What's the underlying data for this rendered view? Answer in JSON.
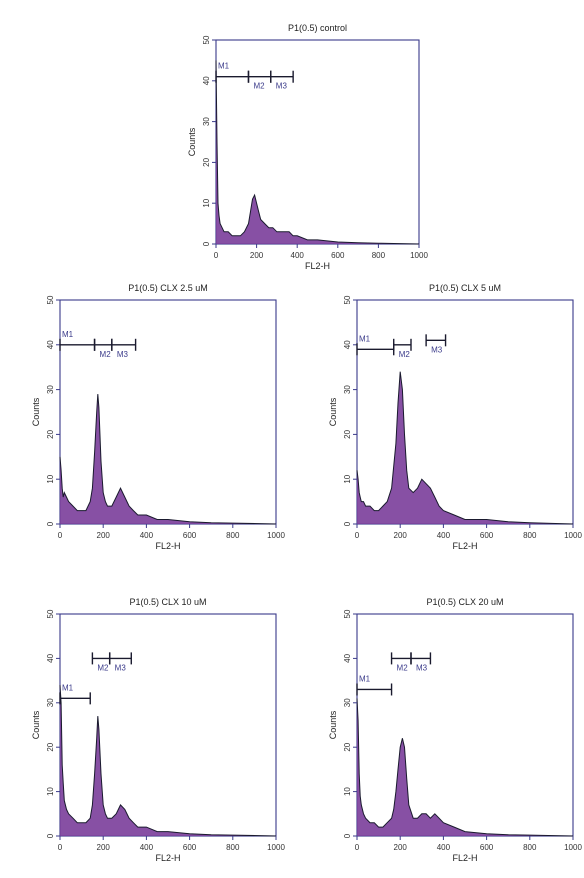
{
  "chart_data": [
    {
      "type": "area",
      "title": "P1(0.5) control",
      "xlabel": "FL2-H",
      "ylabel": "Counts",
      "xlim": [
        0,
        1000
      ],
      "ylim": [
        0,
        50
      ],
      "xticks": [
        "0",
        "200",
        "400",
        "600",
        "800",
        "1000"
      ],
      "yticks": [
        "0",
        "10",
        "20",
        "30",
        "40",
        "50"
      ],
      "fill_color": "#7a3d9a",
      "outline_color": "#1a1a2e",
      "markers": [
        {
          "name": "M1",
          "range": [
            0,
            160
          ],
          "y": 41
        },
        {
          "name": "M2",
          "range": [
            160,
            270
          ],
          "y": 41
        },
        {
          "name": "M3",
          "range": [
            270,
            380
          ],
          "y": 41
        }
      ],
      "x": [
        0,
        5,
        10,
        15,
        20,
        30,
        40,
        60,
        80,
        100,
        120,
        140,
        160,
        170,
        180,
        190,
        200,
        210,
        220,
        240,
        260,
        280,
        300,
        320,
        340,
        360,
        380,
        400,
        450,
        500,
        600,
        700,
        800,
        1000
      ],
      "values": [
        45,
        25,
        10,
        7,
        5,
        4,
        3,
        3,
        2,
        2,
        2,
        3,
        5,
        8,
        11,
        12,
        10,
        8,
        6,
        5,
        4,
        4,
        3,
        3,
        3,
        3,
        2,
        2,
        1,
        1,
        0.5,
        0.3,
        0.2,
        0
      ]
    },
    {
      "type": "area",
      "title": "P1(0.5) CLX 2.5 uM",
      "xlabel": "FL2-H",
      "ylabel": "Counts",
      "xlim": [
        0,
        1000
      ],
      "ylim": [
        0,
        50
      ],
      "xticks": [
        "0",
        "200",
        "400",
        "600",
        "800",
        "1000"
      ],
      "yticks": [
        "0",
        "10",
        "20",
        "30",
        "40",
        "50"
      ],
      "fill_color": "#7a3d9a",
      "outline_color": "#1a1a2e",
      "markers": [
        {
          "name": "M1",
          "range": [
            0,
            160
          ],
          "y": 40
        },
        {
          "name": "M2",
          "range": [
            160,
            240
          ],
          "y": 40
        },
        {
          "name": "M3",
          "range": [
            240,
            350
          ],
          "y": 40
        }
      ],
      "x": [
        0,
        5,
        10,
        15,
        20,
        30,
        40,
        60,
        80,
        100,
        120,
        140,
        150,
        160,
        170,
        175,
        180,
        190,
        200,
        210,
        220,
        240,
        260,
        280,
        300,
        320,
        340,
        360,
        400,
        450,
        500,
        600,
        700,
        800,
        1000
      ],
      "values": [
        15,
        12,
        8,
        6,
        7,
        6,
        5,
        4,
        3,
        3,
        3,
        5,
        8,
        16,
        25,
        29,
        26,
        14,
        7,
        5,
        4,
        4,
        6,
        8,
        6,
        4,
        3,
        2,
        2,
        1,
        1,
        0.5,
        0.3,
        0.2,
        0
      ]
    },
    {
      "type": "area",
      "title": "P1(0.5) CLX 5 uM",
      "xlabel": "FL2-H",
      "ylabel": "Counts",
      "xlim": [
        0,
        1000
      ],
      "ylim": [
        0,
        50
      ],
      "xticks": [
        "0",
        "200",
        "400",
        "600",
        "800",
        "1000"
      ],
      "yticks": [
        "0",
        "10",
        "20",
        "30",
        "40",
        "50"
      ],
      "fill_color": "#7a3d9a",
      "outline_color": "#1a1a2e",
      "markers": [
        {
          "name": "M1",
          "range": [
            0,
            170
          ],
          "y": 39
        },
        {
          "name": "M2",
          "range": [
            170,
            250
          ],
          "y": 40
        },
        {
          "name": "M3",
          "range": [
            320,
            410
          ],
          "y": 41
        }
      ],
      "x": [
        0,
        5,
        10,
        15,
        20,
        30,
        40,
        60,
        80,
        100,
        120,
        140,
        160,
        180,
        190,
        200,
        210,
        220,
        230,
        240,
        260,
        280,
        300,
        320,
        340,
        360,
        380,
        400,
        450,
        500,
        600,
        700,
        800,
        1000
      ],
      "values": [
        12,
        10,
        7,
        6,
        5,
        5,
        4,
        4,
        3,
        3,
        4,
        5,
        8,
        18,
        27,
        34,
        30,
        20,
        12,
        8,
        7,
        8,
        10,
        9,
        8,
        6,
        4,
        3,
        2,
        1,
        1,
        0.5,
        0.3,
        0
      ]
    },
    {
      "type": "area",
      "title": "P1(0.5) CLX 10 uM",
      "xlabel": "FL2-H",
      "ylabel": "Counts",
      "xlim": [
        0,
        1000
      ],
      "ylim": [
        0,
        50
      ],
      "xticks": [
        "0",
        "200",
        "400",
        "600",
        "800",
        "1000"
      ],
      "yticks": [
        "0",
        "10",
        "20",
        "30",
        "40",
        "50"
      ],
      "fill_color": "#7a3d9a",
      "outline_color": "#1a1a2e",
      "markers": [
        {
          "name": "M1",
          "range": [
            0,
            140
          ],
          "y": 31
        },
        {
          "name": "M2",
          "range": [
            150,
            230
          ],
          "y": 40
        },
        {
          "name": "M3",
          "range": [
            230,
            330
          ],
          "y": 40
        }
      ],
      "x": [
        0,
        5,
        10,
        15,
        20,
        30,
        40,
        60,
        80,
        100,
        120,
        140,
        150,
        160,
        170,
        175,
        180,
        190,
        200,
        210,
        220,
        240,
        260,
        280,
        300,
        320,
        340,
        360,
        400,
        450,
        500,
        600,
        700,
        800,
        1000
      ],
      "values": [
        34,
        30,
        16,
        12,
        8,
        6,
        5,
        4,
        3,
        3,
        3,
        4,
        7,
        14,
        22,
        27,
        24,
        14,
        7,
        5,
        4,
        4,
        5,
        7,
        6,
        4,
        3,
        2,
        2,
        1,
        1,
        0.5,
        0.3,
        0.2,
        0
      ]
    },
    {
      "type": "area",
      "title": "P1(0.5) CLX 20 uM",
      "xlabel": "FL2-H",
      "ylabel": "Counts",
      "xlim": [
        0,
        1000
      ],
      "ylim": [
        0,
        50
      ],
      "xticks": [
        "0",
        "200",
        "400",
        "600",
        "800",
        "1000"
      ],
      "yticks": [
        "0",
        "10",
        "20",
        "30",
        "40",
        "50"
      ],
      "fill_color": "#7a3d9a",
      "outline_color": "#1a1a2e",
      "markers": [
        {
          "name": "M1",
          "range": [
            0,
            160
          ],
          "y": 33
        },
        {
          "name": "M2",
          "range": [
            160,
            250
          ],
          "y": 40
        },
        {
          "name": "M3",
          "range": [
            250,
            340
          ],
          "y": 40
        }
      ],
      "x": [
        0,
        5,
        10,
        15,
        20,
        30,
        40,
        60,
        80,
        100,
        120,
        140,
        160,
        170,
        180,
        190,
        200,
        210,
        220,
        230,
        240,
        260,
        280,
        300,
        320,
        340,
        360,
        380,
        400,
        450,
        500,
        600,
        700,
        800,
        1000
      ],
      "values": [
        31,
        26,
        14,
        9,
        7,
        5,
        4,
        3,
        3,
        2,
        2,
        3,
        4,
        6,
        10,
        15,
        20,
        22,
        20,
        13,
        7,
        4,
        4,
        5,
        5,
        4,
        5,
        4,
        3,
        2,
        1,
        0.5,
        0.3,
        0.2,
        0
      ]
    }
  ]
}
